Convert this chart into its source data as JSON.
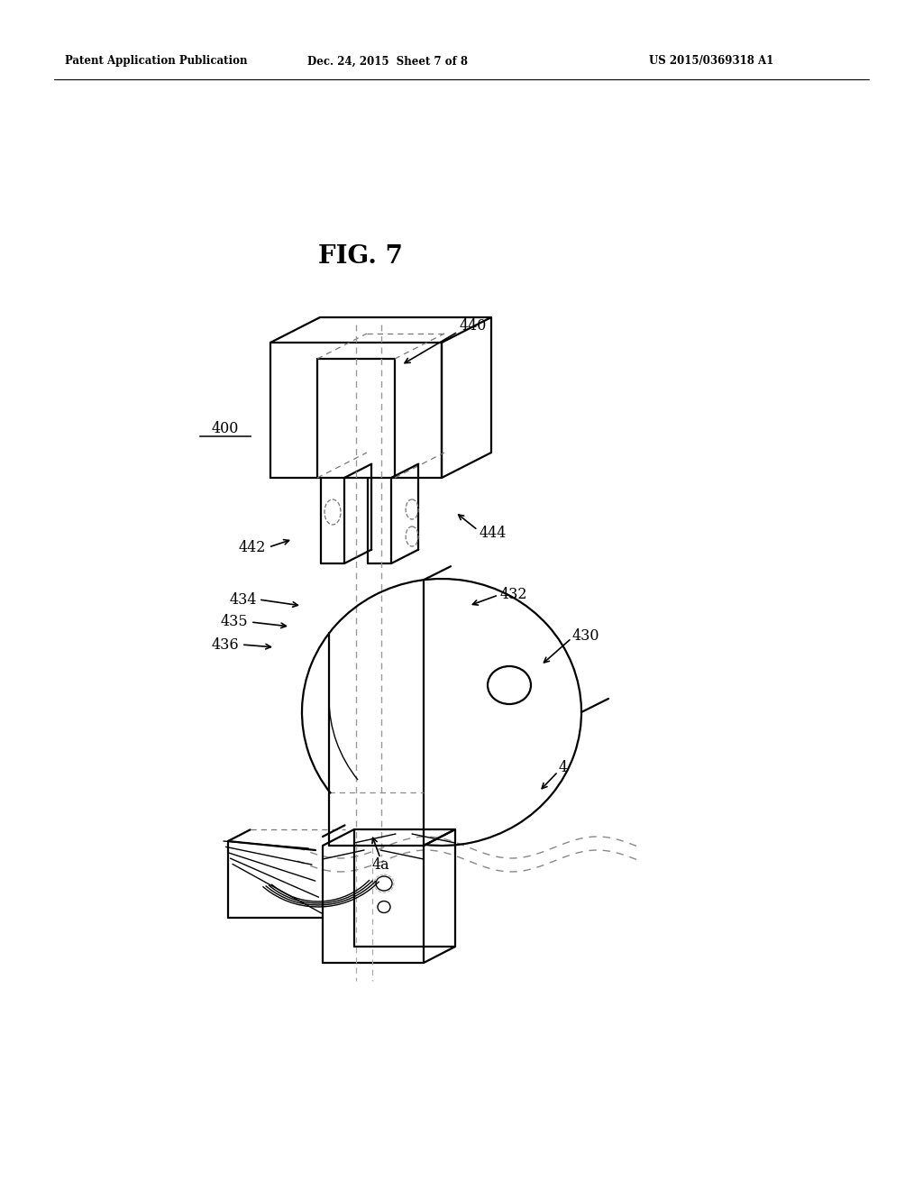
{
  "background_color": "#ffffff",
  "page_width": 10.24,
  "page_height": 13.2,
  "header_text_left": "Patent Application Publication",
  "header_text_mid": "Dec. 24, 2015  Sheet 7 of 8",
  "header_text_right": "US 2015/0369318 A1",
  "fig_label": "FIG. 7",
  "line_color": "#000000",
  "text_color": "#000000"
}
